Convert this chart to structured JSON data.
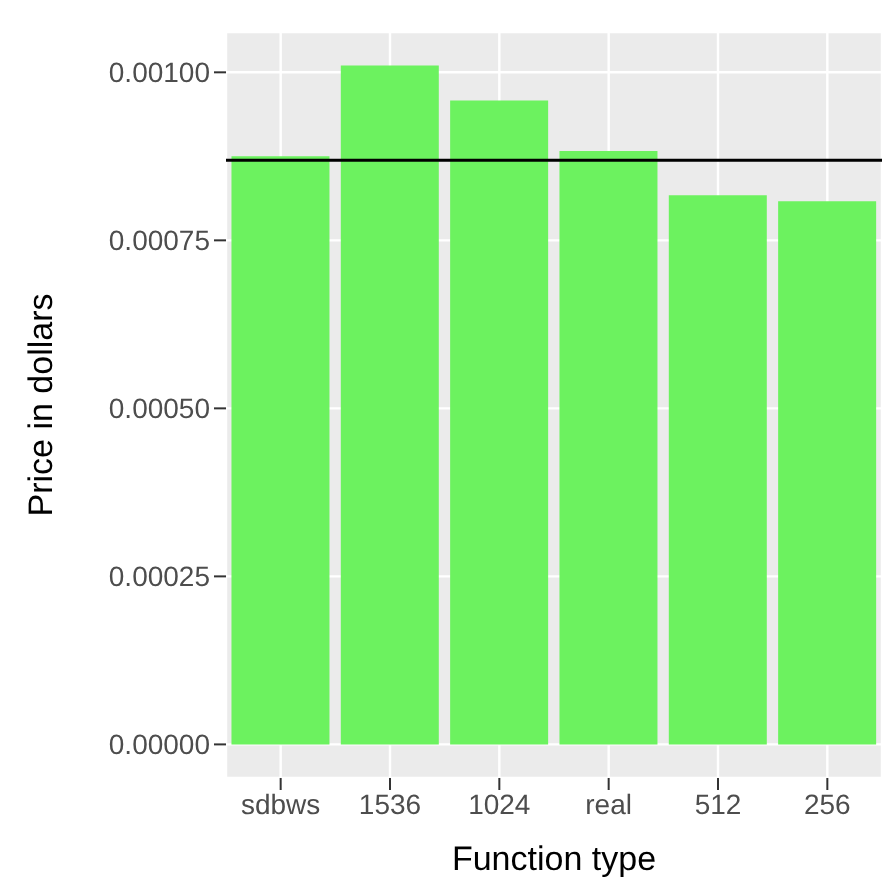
{
  "chart_data": {
    "type": "bar",
    "xlabel": "Function type",
    "ylabel": "Price in dollars",
    "categories": [
      "sdbws",
      "1536",
      "1024",
      "real",
      "512",
      "256"
    ],
    "values": [
      0.000875,
      0.00101,
      0.000958,
      0.000883,
      0.000817,
      0.000808
    ],
    "color": "#6cf25f",
    "ylim": [
      -5e-05,
      0.00106
    ],
    "yticks": [
      {
        "value": 0,
        "label": "0.00000"
      },
      {
        "value": 0.00025,
        "label": "0.00025"
      },
      {
        "value": 0.0005,
        "label": "0.00050"
      },
      {
        "value": 0.00075,
        "label": "0.00075"
      },
      {
        "value": 0.001,
        "label": "0.00100"
      }
    ],
    "grid": true,
    "ref_lines": [
      {
        "axis": "y",
        "value": 0.000869,
        "color": "#000000"
      }
    ]
  }
}
